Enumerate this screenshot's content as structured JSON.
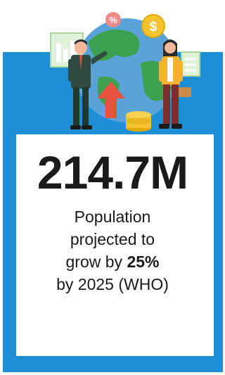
{
  "stat": {
    "value": "214.7M",
    "line1": "Population",
    "line2": "projected to",
    "line3_prefix": "grow by ",
    "line3_bold": "25%",
    "line4": "by 2025 (WHO)"
  },
  "illustration": {
    "percent_badge": "%",
    "coin_symbol": "$"
  },
  "colors": {
    "frame_blue": "#1e8fd6",
    "card_white": "#ffffff",
    "text_dark": "#1a1a1a",
    "globe_blue": "#5aa3d8",
    "globe_green": "#3ea04f",
    "coin_gold": "#f4c430",
    "arrow_red": "#e8513f"
  }
}
